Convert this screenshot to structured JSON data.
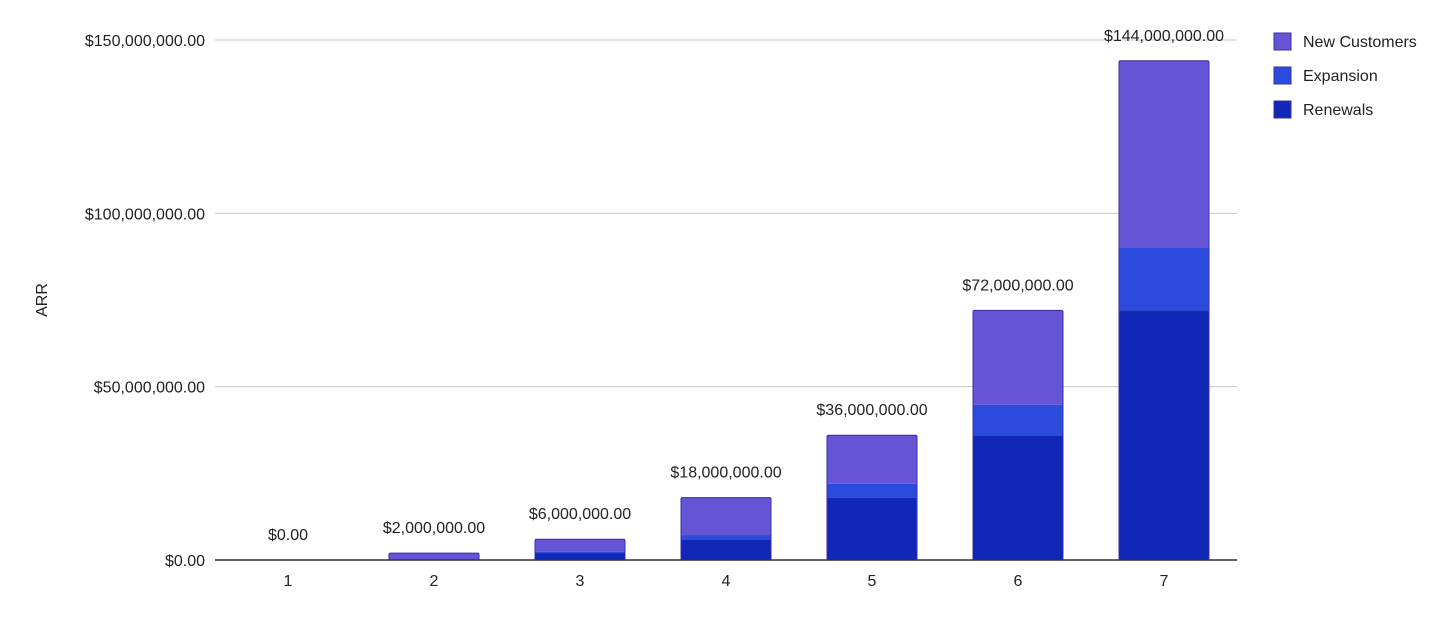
{
  "chart_data": {
    "type": "bar",
    "stacked": true,
    "title": "",
    "xlabel": "",
    "ylabel": "ARR",
    "ylim": [
      0,
      150000000
    ],
    "y_ticks": [
      {
        "value": 0,
        "label": "$0.00"
      },
      {
        "value": 50000000,
        "label": "$50,000,000.00"
      },
      {
        "value": 100000000,
        "label": "$100,000,000.00"
      },
      {
        "value": 150000000,
        "label": "$150,000,000.00"
      }
    ],
    "categories": [
      "1",
      "2",
      "3",
      "4",
      "5",
      "6",
      "7"
    ],
    "series": [
      {
        "name": "Renewals",
        "color": "#1028b5",
        "values": [
          0,
          0,
          2000000,
          6000000,
          18000000,
          36000000,
          72000000
        ]
      },
      {
        "name": "Expansion",
        "color": "#2b4bdc",
        "values": [
          0,
          0,
          400000,
          1200000,
          4000000,
          8800000,
          18000000
        ]
      },
      {
        "name": "New Customers",
        "color": "#6554d6",
        "values": [
          0,
          2000000,
          3600000,
          10800000,
          14000000,
          27200000,
          54000000
        ]
      }
    ],
    "totals": [
      {
        "value": 0,
        "label": "$0.00"
      },
      {
        "value": 2000000,
        "label": "$2,000,000.00"
      },
      {
        "value": 6000000,
        "label": "$6,000,000.00"
      },
      {
        "value": 18000000,
        "label": "$18,000,000.00"
      },
      {
        "value": 36000000,
        "label": "$36,000,000.00"
      },
      {
        "value": 72000000,
        "label": "$72,000,000.00"
      },
      {
        "value": 144000000,
        "label": "$144,000,000.00"
      }
    ],
    "legend": {
      "position": "right",
      "order": [
        "New Customers",
        "Expansion",
        "Renewals"
      ]
    },
    "grid": true
  }
}
